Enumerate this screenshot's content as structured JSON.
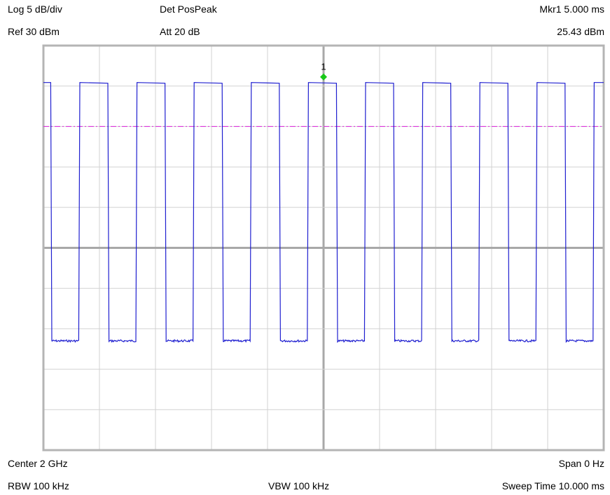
{
  "header": {
    "scale": "Log 5 dB/div",
    "detector": "Det PosPeak",
    "marker_label": "Mkr1  5.000 ms",
    "ref_level": "Ref 30 dBm",
    "attenuation": "Att 20 dB",
    "marker_value": "25.43 dBm"
  },
  "footer": {
    "center": "Center 2 GHz",
    "span": "Span 0 Hz",
    "rbw": "RBW 100 kHz",
    "vbw": "VBW 100 kHz",
    "sweep_time": "Sweep Time 10.000 ms"
  },
  "chart_data": {
    "type": "line",
    "x_unit": "ms",
    "y_unit": "dBm",
    "xlim": [
      0,
      10
    ],
    "ylim": [
      -20,
      30
    ],
    "grid": true,
    "grid_divisions": {
      "x": 10,
      "y": 10
    },
    "series": [
      {
        "trace": "burst-trace",
        "color": "#1f1fd0",
        "high_level": 25.43,
        "low_level": -6.5,
        "period": 1.02,
        "on_duration": 0.5,
        "first_rise": 0.65,
        "x_start_high": 0.0,
        "x_first_fall": 0.13
      }
    ],
    "threshold_line": {
      "y": 20,
      "color": "#dd22dd",
      "style": "dash-dot"
    },
    "marker": {
      "label": "1",
      "x": 5.0,
      "y": 25.43,
      "color": "#19c819"
    }
  },
  "colors": {
    "frame": "#b4b4b4",
    "grid": "#d2d2d2",
    "center_line": "#a8a8a8"
  }
}
